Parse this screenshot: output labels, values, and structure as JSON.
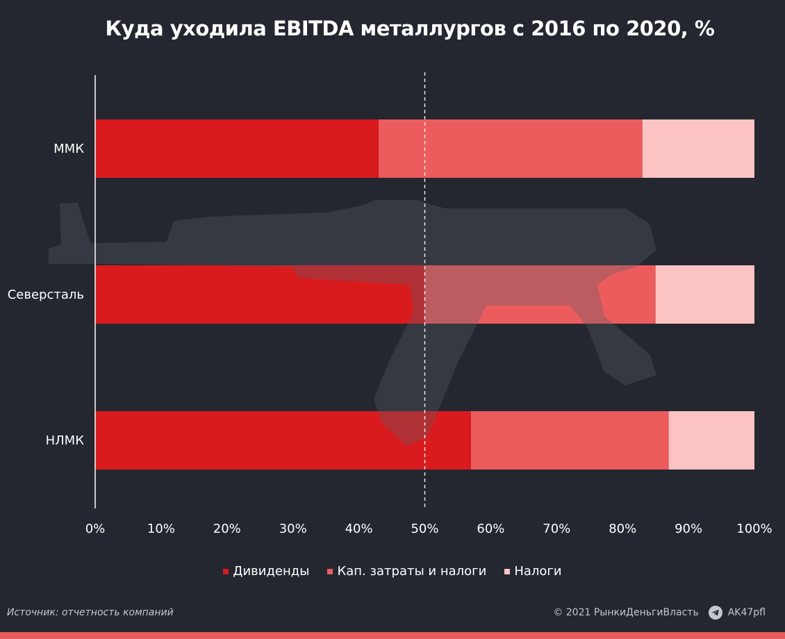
{
  "chart_data": {
    "type": "bar",
    "orientation": "horizontal",
    "stacked": true,
    "title": "Куда уходила EBITDA металлургов с 2016 по 2020, %",
    "categories": [
      "ММК",
      "Северсталь",
      "НЛМК"
    ],
    "series": [
      {
        "name": "Дивиденды",
        "values": [
          43,
          50,
          57
        ],
        "color": "#d91b1e"
      },
      {
        "name": "Кап. затраты и налоги",
        "values": [
          40,
          35,
          30
        ],
        "color": "#ec5c5d"
      },
      {
        "name": "Налоги",
        "values": [
          17,
          15,
          13
        ],
        "color": "#fbc3c2"
      }
    ],
    "xlim": [
      0,
      100
    ],
    "x_ticks": [
      0,
      10,
      20,
      30,
      40,
      50,
      60,
      70,
      80,
      90,
      100
    ],
    "x_tick_labels": [
      "0%",
      "10%",
      "20%",
      "30%",
      "40%",
      "50%",
      "60%",
      "70%",
      "80%",
      "90%",
      "100%"
    ],
    "reference_line": 50,
    "grid": false,
    "legend_position": "bottom"
  },
  "footer": {
    "source": "Источник: отчетность компаний",
    "copyright": "© 2021 РынкиДеньгиВласть",
    "handle": "AK47pfl"
  },
  "icons": {
    "telegram": "telegram-icon",
    "watermark": "rifle-watermark-icon"
  },
  "colors": {
    "background": "#242730",
    "accent_stripe": "#e55b5b"
  }
}
